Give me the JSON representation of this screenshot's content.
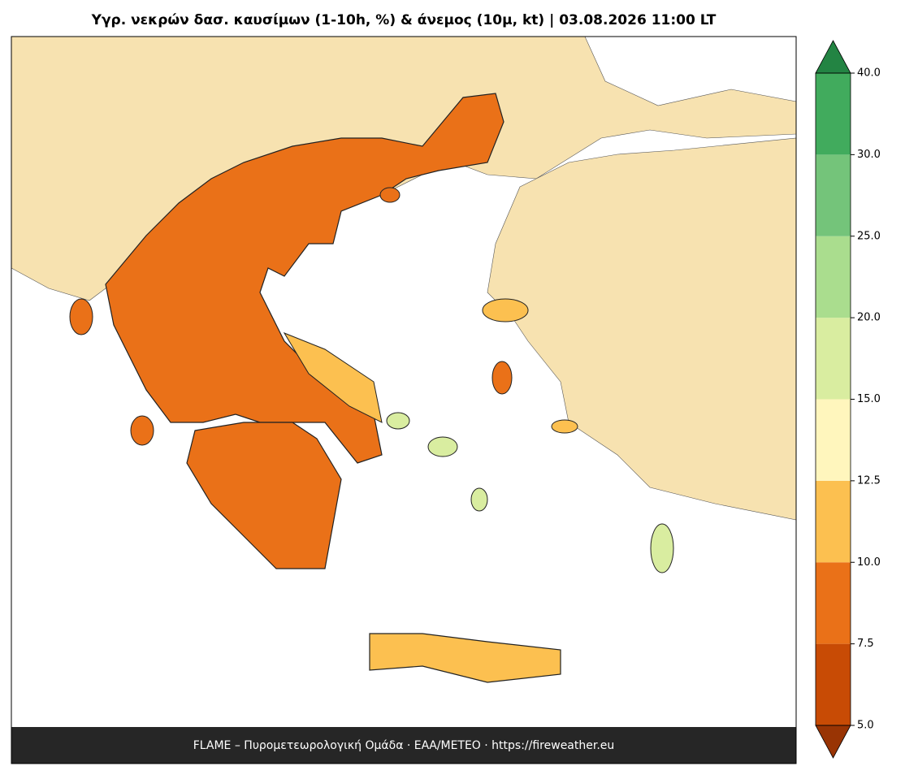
{
  "title": "Υγρ. νεκρών δασ. καυσίμων (1-10h, %) & άνεμος (10μ, kt)  |  03.08.2026 11:00 LT",
  "footer": "FLAME – Πυρομετεωρολογική Ομάδα · ΕΑΑ/METEO · https://fireweather.eu",
  "colorbar": {
    "ticks": [
      {
        "value": 5,
        "label": "5.0"
      },
      {
        "value": 7.5,
        "label": "7.5"
      },
      {
        "value": 10,
        "label": "10.0"
      },
      {
        "value": 12.5,
        "label": "12.5"
      },
      {
        "value": 15,
        "label": "15.0"
      },
      {
        "value": 20,
        "label": "20.0"
      },
      {
        "value": 25,
        "label": "25.0"
      },
      {
        "value": 30,
        "label": "30.0"
      },
      {
        "value": 40,
        "label": "40.0"
      }
    ],
    "colors": [
      "#c84b05",
      "#ea7118",
      "#fcc050",
      "#fff6bd",
      "#d9eda0",
      "#aadd8e",
      "#74c47a",
      "#41ab5d"
    ],
    "under_color": "#993404",
    "over_color": "#238443"
  }
}
